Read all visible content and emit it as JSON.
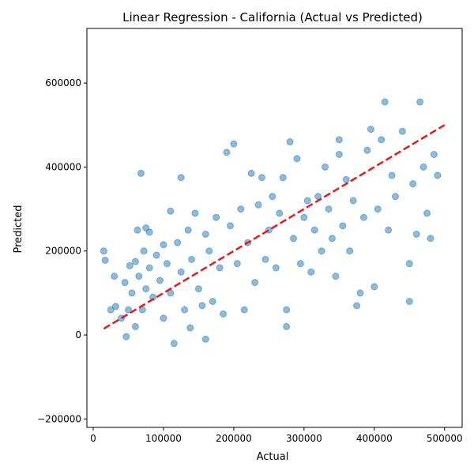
{
  "chart_data": {
    "type": "scatter",
    "title": "Linear Regression - California (Actual vs Predicted)",
    "xlabel": "Actual",
    "ylabel": "Predicted",
    "xlim": [
      -9000,
      525000
    ],
    "ylim": [
      -220000,
      730000
    ],
    "xticks": [
      {
        "value": 0,
        "label": "0"
      },
      {
        "value": 100000,
        "label": "100000"
      },
      {
        "value": 200000,
        "label": "200000"
      },
      {
        "value": 300000,
        "label": "300000"
      },
      {
        "value": 400000,
        "label": "400000"
      },
      {
        "value": 500000,
        "label": "500000"
      }
    ],
    "yticks": [
      {
        "value": -200000,
        "label": "−200000"
      },
      {
        "value": 0,
        "label": "0"
      },
      {
        "value": 200000,
        "label": "200000"
      },
      {
        "value": 400000,
        "label": "400000"
      },
      {
        "value": 600000,
        "label": "600000"
      }
    ],
    "grid": false,
    "series": [
      {
        "kind": "scatter",
        "color": "#1f77b4",
        "alpha": 0.5,
        "points": [
          [
            15000,
            200000
          ],
          [
            17000,
            178000
          ],
          [
            25000,
            60000
          ],
          [
            30000,
            140000
          ],
          [
            32000,
            68000
          ],
          [
            40000,
            40000
          ],
          [
            45000,
            125000
          ],
          [
            47000,
            -4000
          ],
          [
            50000,
            60000
          ],
          [
            52000,
            165000
          ],
          [
            55000,
            100000
          ],
          [
            60000,
            175000
          ],
          [
            60000,
            20000
          ],
          [
            63000,
            250000
          ],
          [
            65000,
            140000
          ],
          [
            68000,
            385000
          ],
          [
            70000,
            60000
          ],
          [
            72000,
            200000
          ],
          [
            75000,
            255000
          ],
          [
            75000,
            110000
          ],
          [
            80000,
            245000
          ],
          [
            80000,
            160000
          ],
          [
            85000,
            90000
          ],
          [
            90000,
            190000
          ],
          [
            95000,
            130000
          ],
          [
            100000,
            40000
          ],
          [
            100000,
            215000
          ],
          [
            105000,
            170000
          ],
          [
            110000,
            295000
          ],
          [
            110000,
            100000
          ],
          [
            115000,
            -20000
          ],
          [
            120000,
            220000
          ],
          [
            125000,
            375000
          ],
          [
            125000,
            150000
          ],
          [
            130000,
            60000
          ],
          [
            135000,
            250000
          ],
          [
            138000,
            17000
          ],
          [
            140000,
            180000
          ],
          [
            145000,
            290000
          ],
          [
            150000,
            110000
          ],
          [
            155000,
            70000
          ],
          [
            160000,
            -10000
          ],
          [
            160000,
            240000
          ],
          [
            165000,
            200000
          ],
          [
            170000,
            80000
          ],
          [
            175000,
            280000
          ],
          [
            180000,
            160000
          ],
          [
            185000,
            50000
          ],
          [
            190000,
            435000
          ],
          [
            195000,
            260000
          ],
          [
            200000,
            455000
          ],
          [
            205000,
            170000
          ],
          [
            210000,
            300000
          ],
          [
            215000,
            60000
          ],
          [
            220000,
            220000
          ],
          [
            225000,
            385000
          ],
          [
            230000,
            125000
          ],
          [
            235000,
            310000
          ],
          [
            240000,
            375000
          ],
          [
            245000,
            180000
          ],
          [
            250000,
            250000
          ],
          [
            255000,
            330000
          ],
          [
            260000,
            160000
          ],
          [
            265000,
            290000
          ],
          [
            270000,
            375000
          ],
          [
            275000,
            20000
          ],
          [
            275000,
            60000
          ],
          [
            280000,
            460000
          ],
          [
            285000,
            230000
          ],
          [
            290000,
            420000
          ],
          [
            295000,
            170000
          ],
          [
            300000,
            280000
          ],
          [
            305000,
            320000
          ],
          [
            310000,
            150000
          ],
          [
            315000,
            250000
          ],
          [
            320000,
            330000
          ],
          [
            325000,
            200000
          ],
          [
            330000,
            400000
          ],
          [
            335000,
            300000
          ],
          [
            340000,
            230000
          ],
          [
            345000,
            140000
          ],
          [
            350000,
            465000
          ],
          [
            350000,
            430000
          ],
          [
            355000,
            260000
          ],
          [
            360000,
            370000
          ],
          [
            365000,
            200000
          ],
          [
            370000,
            320000
          ],
          [
            375000,
            70000
          ],
          [
            380000,
            100000
          ],
          [
            385000,
            280000
          ],
          [
            390000,
            440000
          ],
          [
            395000,
            490000
          ],
          [
            400000,
            115000
          ],
          [
            405000,
            300000
          ],
          [
            410000,
            465000
          ],
          [
            415000,
            555000
          ],
          [
            420000,
            250000
          ],
          [
            425000,
            380000
          ],
          [
            430000,
            330000
          ],
          [
            440000,
            485000
          ],
          [
            450000,
            80000
          ],
          [
            450000,
            170000
          ],
          [
            455000,
            360000
          ],
          [
            460000,
            240000
          ],
          [
            465000,
            555000
          ],
          [
            470000,
            400000
          ],
          [
            475000,
            290000
          ],
          [
            480000,
            230000
          ],
          [
            485000,
            430000
          ],
          [
            490000,
            380000
          ]
        ]
      },
      {
        "kind": "line",
        "name": "",
        "color": "#e41a1c",
        "dashed": true,
        "points": [
          [
            15000,
            15000
          ],
          [
            500000,
            500000
          ]
        ]
      }
    ]
  }
}
